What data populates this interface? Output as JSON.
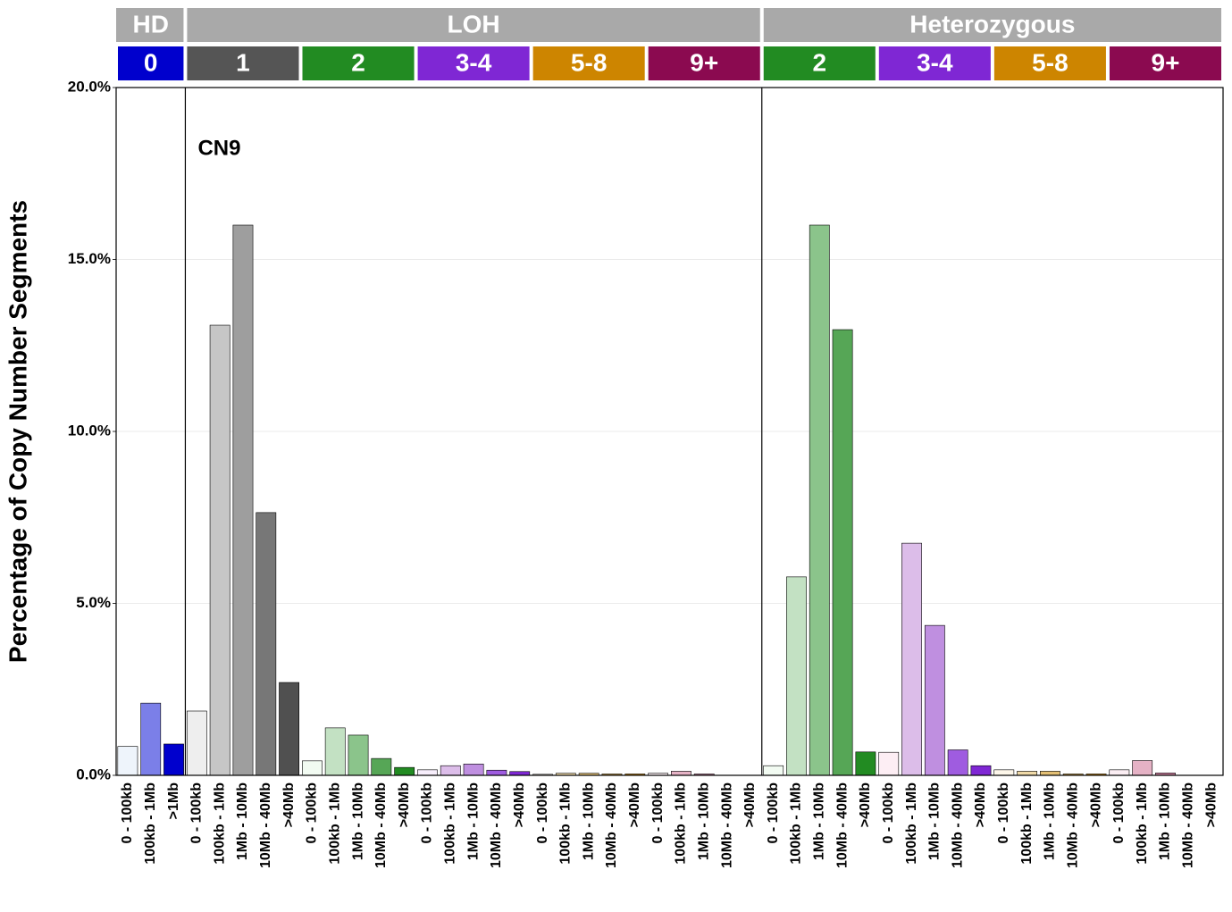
{
  "chart_data": {
    "type": "bar",
    "annotation": "CN9",
    "ylabel": "Percentage of Copy Number Segments",
    "ylim": [
      0,
      20
    ],
    "yticks": [
      {
        "value": 0,
        "label": "0.0%"
      },
      {
        "value": 5,
        "label": "5.0%"
      },
      {
        "value": 10,
        "label": "10.0%"
      },
      {
        "value": 15,
        "label": "15.0%"
      },
      {
        "value": 20,
        "label": "20.0%"
      }
    ],
    "grid": true,
    "panels": [
      {
        "label": "HD",
        "subgroups": [
          {
            "label": "0",
            "color": "#0000cd",
            "categories": [
              "0 - 100kb",
              "100kb - 1Mb",
              ">1Mb"
            ],
            "values": [
              0.84,
              2.1,
              0.91
            ],
            "colors": [
              "#eef4fb",
              "#7b7fe8",
              "#0000cd"
            ]
          }
        ]
      },
      {
        "label": "LOH",
        "subgroups": [
          {
            "label": "1",
            "color": "#555555",
            "categories": [
              "0 - 100kb",
              "100kb - 1Mb",
              "1Mb - 10Mb",
              "10Mb - 40Mb",
              ">40Mb"
            ],
            "values": [
              1.87,
              13.09,
              16.0,
              7.64,
              2.7
            ],
            "colors": [
              "#eeeeee",
              "#c6c6c6",
              "#9e9e9e",
              "#777777",
              "#505050"
            ]
          },
          {
            "label": "2",
            "color": "#228b22",
            "categories": [
              "0 - 100kb",
              "100kb - 1Mb",
              "1Mb - 10Mb",
              "10Mb - 40Mb",
              ">40Mb"
            ],
            "values": [
              0.42,
              1.38,
              1.17,
              0.49,
              0.23
            ],
            "colors": [
              "#f2fbf2",
              "#c3e1c3",
              "#8bc48b",
              "#56a656",
              "#228b22"
            ]
          },
          {
            "label": "3-4",
            "color": "#7f27d4",
            "categories": [
              "0 - 100kb",
              "100kb - 1Mb",
              "1Mb - 10Mb",
              "10Mb - 40Mb",
              ">40Mb"
            ],
            "values": [
              0.16,
              0.28,
              0.33,
              0.15,
              0.11
            ],
            "colors": [
              "#f7eefb",
              "#dcbde9",
              "#bf8fe0",
              "#9f5ce0",
              "#7f27d4"
            ]
          },
          {
            "label": "5-8",
            "color": "#cd8500",
            "categories": [
              "0 - 100kb",
              "100kb - 1Mb",
              "1Mb - 10Mb",
              "10Mb - 40Mb",
              ">40Mb"
            ],
            "values": [
              0.03,
              0.06,
              0.06,
              0.04,
              0.04
            ],
            "colors": [
              "#fdf7ea",
              "#efd9a7",
              "#e3bf74",
              "#d5a140",
              "#cd8500"
            ]
          },
          {
            "label": "9+",
            "color": "#8b0a50",
            "categories": [
              "0 - 100kb",
              "100kb - 1Mb",
              "1Mb - 10Mb",
              "10Mb - 40Mb",
              ">40Mb"
            ],
            "values": [
              0.06,
              0.12,
              0.04,
              0,
              0
            ],
            "colors": [
              "#fbeef3",
              "#e5b2c5",
              "#c67d9b",
              "#a84373",
              "#8b0a50"
            ]
          }
        ]
      },
      {
        "label": "Heterozygous",
        "subgroups": [
          {
            "label": "2",
            "color": "#228b22",
            "categories": [
              "0 - 100kb",
              "100kb - 1Mb",
              "1Mb - 10Mb",
              "10Mb - 40Mb",
              ">40Mb"
            ],
            "values": [
              0.28,
              5.77,
              16.0,
              12.96,
              0.68
            ],
            "colors": [
              "#f2fbf2",
              "#c3e1c3",
              "#8bc48b",
              "#56a656",
              "#228b22"
            ]
          },
          {
            "label": "3-4",
            "color": "#7f27d4",
            "categories": [
              "0 - 100kb",
              "100kb - 1Mb",
              "1Mb - 10Mb",
              "10Mb - 40Mb",
              ">40Mb"
            ],
            "values": [
              0.67,
              6.75,
              4.36,
              0.74,
              0.28
            ],
            "colors": [
              "#fdeef4",
              "#dcbde9",
              "#bf8fe0",
              "#9f5ce0",
              "#7f27d4"
            ]
          },
          {
            "label": "5-8",
            "color": "#cd8500",
            "categories": [
              "0 - 100kb",
              "100kb - 1Mb",
              "1Mb - 10Mb",
              "10Mb - 40Mb",
              ">40Mb"
            ],
            "values": [
              0.16,
              0.12,
              0.12,
              0.04,
              0.04
            ],
            "colors": [
              "#fdf7ea",
              "#efd9a7",
              "#e3bf74",
              "#d5a140",
              "#cd8500"
            ]
          },
          {
            "label": "9+",
            "color": "#8b0a50",
            "categories": [
              "0 - 100kb",
              "100kb - 1Mb",
              "1Mb - 10Mb",
              "10Mb - 40Mb",
              ">40Mb"
            ],
            "values": [
              0.16,
              0.43,
              0.07,
              0,
              0
            ],
            "colors": [
              "#fbeef3",
              "#e5b2c5",
              "#c67d9b",
              "#a84373",
              "#8b0a50"
            ]
          }
        ]
      }
    ]
  }
}
